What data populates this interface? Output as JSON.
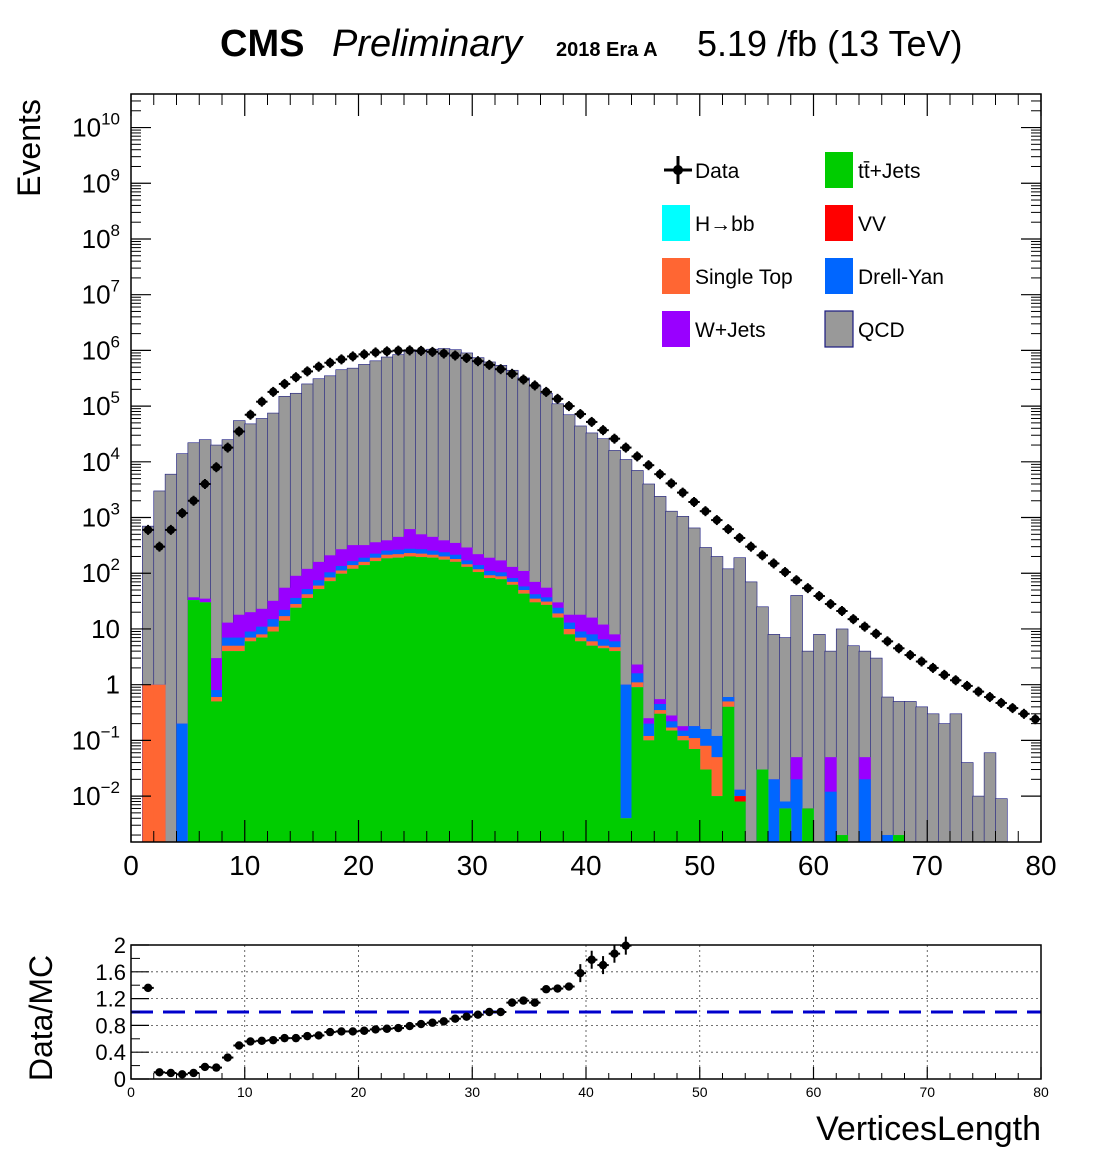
{
  "header": {
    "cms": "CMS",
    "preliminary": "Preliminary",
    "era": "2018 Era A",
    "lumi": "5.19 /fb (13 TeV)"
  },
  "colors": {
    "ttjets": "#00cc00",
    "hbb": "#00ffff",
    "vv": "#ff0000",
    "singletop": "#ff6633",
    "drellyan": "#0066ff",
    "wjets": "#9900ff",
    "qcd": "#999999",
    "data": "#000000",
    "ratio_line": "#0000cc"
  },
  "chart_data": [
    {
      "type": "area",
      "ylabel": "Events",
      "xlim": [
        0,
        80
      ],
      "ylog": true,
      "ylim": [
        0.0015,
        40000000000
      ],
      "xticks": [
        "0",
        "10",
        "20",
        "30",
        "40",
        "50",
        "60",
        "70",
        "80"
      ],
      "yticks": [
        "10^{-2}",
        "10^{-1}",
        "1",
        "10",
        "10^{2}",
        "10^{3}",
        "10^{4}",
        "10^{5}",
        "10^{6}",
        "10^{7}",
        "10^{8}",
        "10^{9}",
        "10^{10}"
      ],
      "legend": {
        "placement": "top-right",
        "entries": [
          {
            "key": "data",
            "label": "Data"
          },
          {
            "key": "ttjets",
            "label": "tt̄+Jets"
          },
          {
            "key": "hbb",
            "label": "H→bb"
          },
          {
            "key": "vv",
            "label": "VV"
          },
          {
            "key": "singletop",
            "label": "Single Top"
          },
          {
            "key": "drellyan",
            "label": "Drell-Yan"
          },
          {
            "key": "wjets",
            "label": "W+Jets"
          },
          {
            "key": "qcd",
            "label": "QCD"
          }
        ]
      },
      "stack_tops": {
        "ttjets": [
          0,
          0,
          0,
          0,
          0,
          33,
          30,
          0.5,
          4,
          4,
          6,
          7,
          9,
          14,
          24,
          36,
          52,
          72,
          98,
          120,
          140,
          165,
          185,
          190,
          200,
          195,
          190,
          175,
          160,
          130,
          105,
          82,
          78,
          62,
          43,
          30,
          27,
          16,
          8,
          6,
          5,
          4.5,
          4,
          0.004,
          0.9,
          0.1,
          0.3,
          0.15,
          0.1,
          0.07,
          0.03,
          0.01,
          0.4,
          0.008,
          0.0004,
          0.03,
          0.0004,
          0.006,
          0.0004,
          0.006,
          0.0004,
          0.0004,
          0.002,
          0.0004,
          0.0004,
          0.0004,
          0.0004,
          0.002,
          0.0004,
          0.0004,
          0.0004,
          0.0004,
          0.0004,
          0.0004,
          0.0004,
          0.0004,
          0.0004,
          0.0004,
          0.0004,
          0.0004
        ],
        "hbb": [
          0,
          0,
          0,
          0,
          0,
          33,
          30,
          0.5,
          4,
          4,
          6,
          7,
          9,
          14,
          24,
          36,
          52,
          72,
          98,
          120,
          140,
          165,
          185,
          190,
          200,
          195,
          190,
          175,
          160,
          130,
          105,
          82,
          78,
          62,
          43,
          30,
          27,
          16,
          8,
          6,
          5,
          4.5,
          4,
          0.004,
          0.9,
          0.1,
          0.3,
          0.15,
          0.1,
          0.07,
          0.03,
          0.01,
          0.4,
          0.008,
          0.0004,
          0.03,
          0.0004,
          0.006,
          0.0004,
          0.006,
          0.0004,
          0.0004,
          0.002,
          0.0004,
          0.0004,
          0.0004,
          0.0004,
          0.002,
          0.0004,
          0.0004,
          0.0004,
          0.0004,
          0.0004,
          0.0004,
          0.0004,
          0.0004,
          0.0004,
          0.0004,
          0.0004,
          0.0004
        ],
        "vv": [
          0,
          0,
          0,
          0,
          0,
          33,
          30,
          0.5,
          4,
          4,
          6,
          7,
          9,
          14,
          24,
          36,
          52,
          72,
          98,
          120,
          140,
          165,
          185,
          190,
          200,
          195,
          190,
          175,
          160,
          130,
          105,
          82,
          78,
          62,
          43,
          30,
          27,
          16,
          8,
          6,
          5,
          4.5,
          4,
          0.004,
          0.9,
          0.1,
          0.3,
          0.15,
          0.1,
          0.07,
          0.03,
          0.01,
          0.4,
          0.01,
          0.0004,
          0.03,
          0.0004,
          0.006,
          0.0004,
          0.006,
          0.0004,
          0.0004,
          0.002,
          0.0004,
          0.0004,
          0.0004,
          0.0004,
          0.002,
          0.0004,
          0.0004,
          0.0004,
          0.0004,
          0.0004,
          0.0004,
          0.0004,
          0.0004,
          0.0004,
          0.0004,
          0.0004,
          0.0004
        ],
        "singletop": [
          0,
          1.0,
          1.0,
          0,
          0,
          33,
          30,
          0.6,
          5,
          5,
          7,
          8,
          11,
          17,
          28,
          42,
          60,
          84,
          112,
          140,
          160,
          190,
          215,
          220,
          230,
          225,
          215,
          200,
          180,
          145,
          118,
          92,
          88,
          70,
          50,
          35,
          31,
          19,
          10,
          7,
          6,
          5,
          4.7,
          0.004,
          1.1,
          0.12,
          0.35,
          0.17,
          0.12,
          0.11,
          0.08,
          0.05,
          0.5,
          0.01,
          0.0004,
          0.03,
          0.0004,
          0.006,
          0.0004,
          0.006,
          0.0004,
          0.0004,
          0.002,
          0.0004,
          0.0004,
          0.0004,
          0.0004,
          0.002,
          0.0004,
          0.0004,
          0.0004,
          0.0004,
          0.0004,
          0.0004,
          0.0004,
          0.0004,
          0.0004,
          0.0004,
          0.0004,
          0.0004
        ],
        "drellyan": [
          0,
          1.0,
          1.0,
          0,
          0.2,
          33,
          30,
          0.8,
          7,
          7,
          9,
          11,
          15,
          22,
          36,
          52,
          75,
          104,
          135,
          165,
          190,
          225,
          255,
          265,
          275,
          270,
          255,
          238,
          215,
          170,
          140,
          110,
          104,
          82,
          58,
          42,
          37,
          24,
          13,
          9,
          8,
          6.5,
          6,
          1.0,
          1.6,
          0.2,
          0.45,
          0.22,
          0.15,
          0.18,
          0.16,
          0.12,
          0.6,
          0.013,
          0.0004,
          0.03,
          0.02,
          0.008,
          0.02,
          0.006,
          0.0004,
          0.012,
          0.002,
          0.0004,
          0.02,
          0.0004,
          0.002,
          0.002,
          0.0004,
          0.0004,
          0.0004,
          0.0004,
          0.0004,
          0.0004,
          0.0004,
          0.0004,
          0.0004,
          0.0004,
          0.0004,
          0.0004
        ],
        "wjets": [
          0,
          1.0,
          1.0,
          0,
          0.2,
          37,
          35,
          3,
          13,
          18,
          20,
          23,
          32,
          55,
          90,
          120,
          160,
          210,
          270,
          320,
          320,
          360,
          390,
          450,
          620,
          500,
          450,
          390,
          350,
          290,
          220,
          190,
          170,
          130,
          110,
          70,
          55,
          30,
          18,
          18,
          16,
          12,
          8,
          1.0,
          2.3,
          0.25,
          0.55,
          0.28,
          0.18,
          0.18,
          0.16,
          0.12,
          0.6,
          0.013,
          0.0004,
          0.03,
          0.02,
          0.008,
          0.05,
          0.006,
          0.0004,
          0.05,
          0.002,
          0.0004,
          0.05,
          0.0004,
          0.002,
          0.002,
          0.0004,
          0.0004,
          0.0004,
          0.0004,
          0.0004,
          0.0004,
          0.0004,
          0.0004,
          0.0004,
          0.0004,
          0.0004,
          0.0004
        ],
        "qcd": [
          0.0015,
          700,
          3000,
          6000,
          14000,
          22000,
          25000,
          20000,
          25000,
          55000,
          48000,
          60000,
          75000,
          150000,
          170000,
          250000,
          310000,
          350000,
          450000,
          480000,
          560000,
          650000,
          760000,
          840000,
          960000,
          1020000,
          1050000,
          1080000,
          1030000,
          900000,
          740000,
          620000,
          540000,
          440000,
          320000,
          230000,
          170000,
          110000,
          70000,
          44000,
          33000,
          26000,
          16000,
          11000,
          7000,
          4000,
          2400,
          1300,
          1050,
          650,
          290,
          200,
          120,
          190,
          70,
          25,
          8,
          7,
          40,
          4,
          8,
          4,
          10,
          5,
          4,
          3,
          0.6,
          0.5,
          0.5,
          0.4,
          0.3,
          0.2,
          0.3,
          0.04,
          0.01,
          0.06,
          0.009,
          0.0015,
          0.0015,
          0.0015
        ]
      },
      "data_x": [
        1.5,
        2.5,
        3.5,
        4.5,
        5.5,
        6.5,
        7.5,
        8.5,
        9.5,
        10.5,
        11.5,
        12.5,
        13.5,
        14.5,
        15.5,
        16.5,
        17.5,
        18.5,
        19.5,
        20.5,
        21.5,
        22.5,
        23.5,
        24.5,
        25.5,
        26.5,
        27.5,
        28.5,
        29.5,
        30.5,
        31.5,
        32.5,
        33.5,
        34.5,
        35.5,
        36.5,
        37.5,
        38.5,
        39.5,
        40.5,
        41.5,
        42.5,
        43.5,
        44.5,
        45.5,
        46.5,
        47.5,
        48.5,
        49.5,
        50.5,
        51.5,
        52.5,
        53.5,
        54.5,
        55.5,
        56.5,
        57.5,
        58.5,
        59.5,
        60.5,
        61.5,
        62.5,
        63.5,
        64.5,
        65.5,
        66.5,
        67.5,
        68.5,
        69.5,
        70.5,
        71.5,
        72.5,
        73.5,
        74.5,
        75.5,
        76.5,
        77.5,
        78.5,
        79.5
      ],
      "data_y": [
        600,
        300,
        600,
        1200,
        2000,
        4000,
        8000,
        18000,
        35000,
        70000,
        120000,
        180000,
        250000,
        330000,
        420000,
        510000,
        600000,
        690000,
        780000,
        850000,
        920000,
        960000,
        990000,
        1000000,
        980000,
        940000,
        880000,
        810000,
        730000,
        640000,
        550000,
        460000,
        380000,
        300000,
        235000,
        180000,
        135000,
        100000,
        72000,
        52000,
        37000,
        26000,
        18000,
        12500,
        8700,
        6000,
        4100,
        2800,
        1900,
        1300,
        900,
        620,
        430,
        300,
        210,
        150,
        105,
        75,
        54,
        39,
        28,
        21,
        15,
        11,
        8.2,
        6,
        4.5,
        3.4,
        2.6,
        2.0,
        1.5,
        1.2,
        0.95,
        0.75,
        0.6,
        0.47,
        0.38,
        0.3,
        0.24
      ]
    },
    {
      "type": "scatter",
      "xlabel": "VerticesLength",
      "ylabel": "Data/MC",
      "xlim": [
        0,
        80
      ],
      "ylim": [
        0,
        2
      ],
      "grid": true,
      "reference_line": 1.0,
      "xticks": [
        "0",
        "10",
        "20",
        "30",
        "40",
        "50",
        "60",
        "70",
        "80"
      ],
      "yticks": [
        "0",
        "0.4",
        "0.8",
        "1.2",
        "1.6",
        "2"
      ],
      "x": [
        1.5,
        2.5,
        3.5,
        4.5,
        5.5,
        6.5,
        7.5,
        8.5,
        9.5,
        10.5,
        11.5,
        12.5,
        13.5,
        14.5,
        15.5,
        16.5,
        17.5,
        18.5,
        19.5,
        20.5,
        21.5,
        22.5,
        23.5,
        24.5,
        25.5,
        26.5,
        27.5,
        28.5,
        29.5,
        30.5,
        31.5,
        32.5,
        33.5,
        34.5,
        35.5,
        36.5,
        37.5,
        38.5,
        39.5,
        40.5,
        41.5,
        42.5,
        43.5
      ],
      "y": [
        1.36,
        0.1,
        0.09,
        0.07,
        0.09,
        0.18,
        0.17,
        0.32,
        0.5,
        0.56,
        0.57,
        0.58,
        0.61,
        0.61,
        0.64,
        0.65,
        0.7,
        0.71,
        0.71,
        0.72,
        0.74,
        0.75,
        0.76,
        0.79,
        0.82,
        0.84,
        0.86,
        0.9,
        0.93,
        0.96,
        1.0,
        1.0,
        1.14,
        1.17,
        1.14,
        1.34,
        1.35,
        1.38,
        1.58,
        1.78,
        1.7,
        1.87,
        1.99
      ]
    }
  ]
}
